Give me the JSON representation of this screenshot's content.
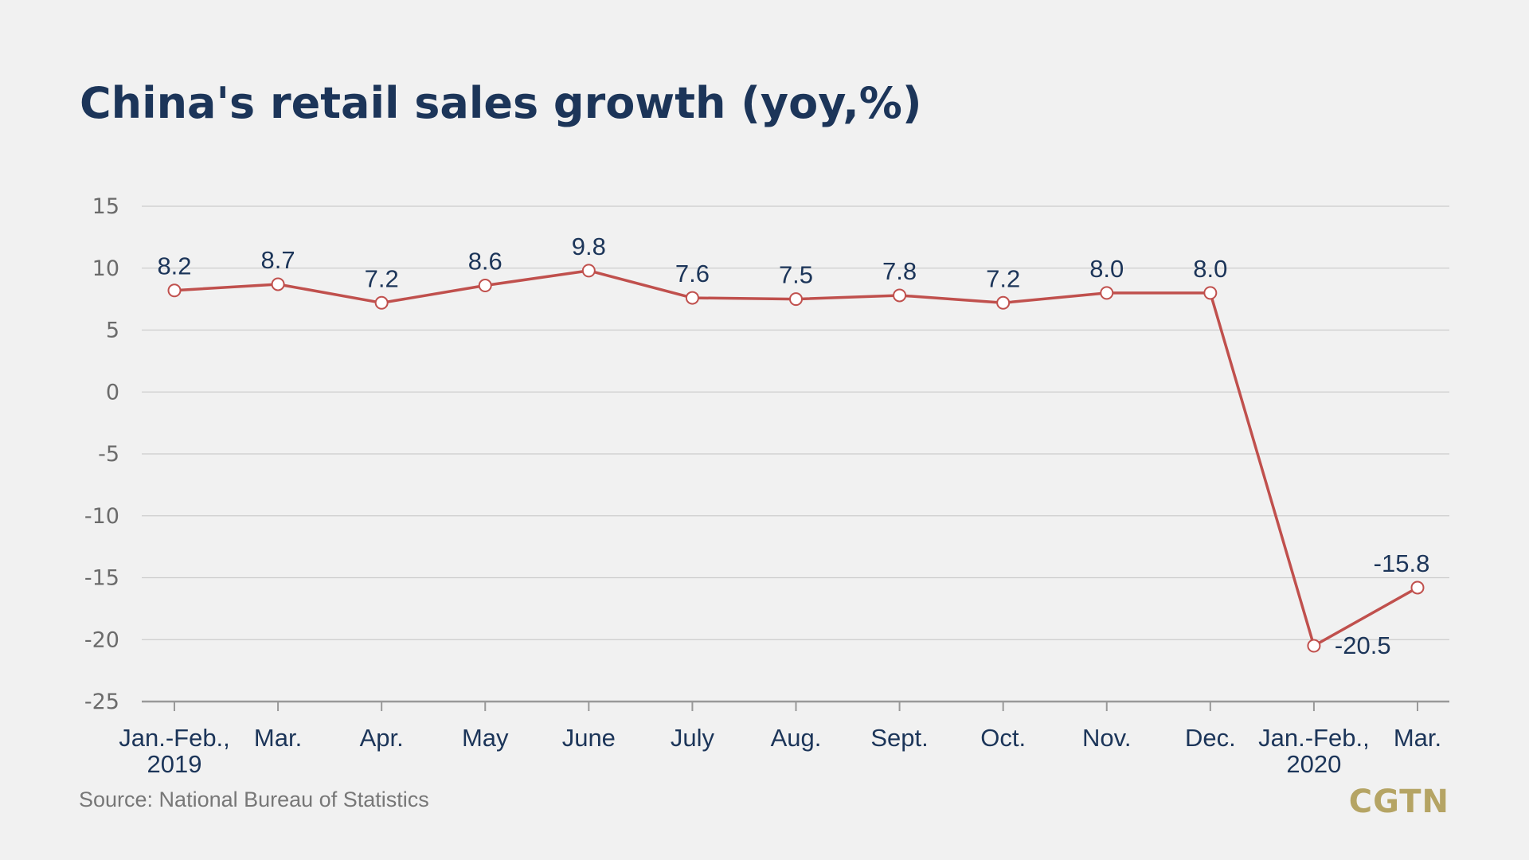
{
  "chart_data": {
    "type": "line",
    "title": "China's retail sales growth (yoy,%)",
    "xlabel": "",
    "ylabel": "",
    "ylim": [
      -25,
      15
    ],
    "yticks": [
      15,
      10,
      5,
      0,
      -5,
      -10,
      -15,
      -20,
      -25
    ],
    "ytick_labels": [
      "15",
      "10",
      "5",
      "0",
      "-5",
      "-10",
      "-15",
      "-20",
      "-25"
    ],
    "grid": true,
    "categories": [
      [
        "Jan.-Feb.,",
        "2019"
      ],
      [
        "Mar."
      ],
      [
        "Apr."
      ],
      [
        "May"
      ],
      [
        "June"
      ],
      [
        "July"
      ],
      [
        "Aug."
      ],
      [
        "Sept."
      ],
      [
        "Oct."
      ],
      [
        "Nov."
      ],
      [
        "Dec."
      ],
      [
        "Jan.-Feb.,",
        "2020"
      ],
      [
        "Mar."
      ]
    ],
    "series": [
      {
        "values": [
          8.2,
          8.7,
          7.2,
          8.6,
          9.8,
          7.6,
          7.5,
          7.8,
          7.2,
          8.0,
          8.0,
          -20.5,
          -15.8
        ],
        "labels": [
          "8.2",
          "8.7",
          "7.2",
          "8.6",
          "9.8",
          "7.6",
          "7.5",
          "7.8",
          "7.2",
          "8.0",
          "8.0",
          "-20.5",
          "-15.8"
        ]
      }
    ]
  },
  "source": "Source: National Bureau of Statistics",
  "logo": "CGTN",
  "colors": {
    "background": "#f1f1f1",
    "title": "#1c3559",
    "line": "#c0504d",
    "marker_fill": "#ffffff",
    "grid": "#cccccc",
    "axis": "#999999",
    "tick_text": "#6b6b6b",
    "xtick_text": "#1c3559",
    "label_text": "#1c3559",
    "source_text": "#777777",
    "logo": "#b5a464"
  }
}
